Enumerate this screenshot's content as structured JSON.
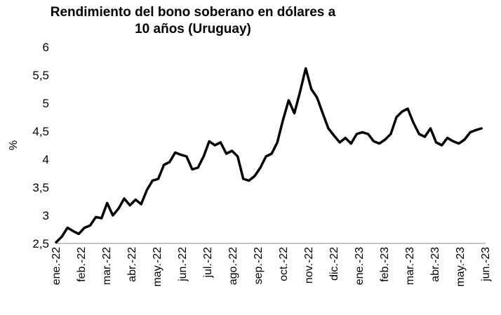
{
  "chart_data": {
    "type": "line",
    "title": "Rendimiento del bono soberano en dólares a 10 años (Uruguay)",
    "xlabel": "",
    "ylabel": "%",
    "ylim": [
      2.5,
      6
    ],
    "yticks": [
      "2,5",
      "3",
      "3,5",
      "4",
      "4,5",
      "5",
      "5,5",
      "6"
    ],
    "ytick_values": [
      2.5,
      3,
      3.5,
      4,
      4.5,
      5,
      5.5,
      6
    ],
    "xticks": [
      "ene.-22",
      "feb.-22",
      "mar.-22",
      "abr.-22",
      "may.-22",
      "jun.-22",
      "jul.-22",
      "ago.-22",
      "sep.-22",
      "oct.-22",
      "nov.-22",
      "dic.-22",
      "ene.-23",
      "feb.-23",
      "mar.-23",
      "abr.-23",
      "may.-23",
      "jun.-23"
    ],
    "grid": false,
    "legend": "none",
    "series": [
      {
        "color": "#000000",
        "x": [
          "2022-01-01",
          "2022-01-08",
          "2022-01-15",
          "2022-01-22",
          "2022-01-29",
          "2022-02-05",
          "2022-02-12",
          "2022-02-19",
          "2022-02-26",
          "2022-03-05",
          "2022-03-12",
          "2022-03-19",
          "2022-03-26",
          "2022-04-02",
          "2022-04-09",
          "2022-04-16",
          "2022-04-23",
          "2022-04-30",
          "2022-05-07",
          "2022-05-14",
          "2022-05-21",
          "2022-05-28",
          "2022-06-04",
          "2022-06-11",
          "2022-06-18",
          "2022-06-25",
          "2022-07-02",
          "2022-07-09",
          "2022-07-16",
          "2022-07-23",
          "2022-07-30",
          "2022-08-06",
          "2022-08-13",
          "2022-08-20",
          "2022-08-27",
          "2022-09-03",
          "2022-09-10",
          "2022-09-17",
          "2022-09-24",
          "2022-10-01",
          "2022-10-08",
          "2022-10-15",
          "2022-10-22",
          "2022-10-29",
          "2022-11-05",
          "2022-11-12",
          "2022-11-19",
          "2022-11-26",
          "2022-12-03",
          "2022-12-10",
          "2022-12-17",
          "2022-12-24",
          "2022-12-31",
          "2023-01-07",
          "2023-01-14",
          "2023-01-21",
          "2023-01-28",
          "2023-02-04",
          "2023-02-11",
          "2023-02-18",
          "2023-02-25",
          "2023-03-04",
          "2023-03-11",
          "2023-03-18",
          "2023-03-25",
          "2023-04-01",
          "2023-04-08",
          "2023-04-15",
          "2023-04-22",
          "2023-04-29",
          "2023-05-06",
          "2023-05-13",
          "2023-05-20",
          "2023-05-27",
          "2023-06-03",
          "2023-06-10"
        ],
        "values": [
          2.52,
          2.62,
          2.78,
          2.72,
          2.67,
          2.78,
          2.82,
          2.97,
          2.95,
          3.22,
          3.0,
          3.12,
          3.3,
          3.18,
          3.28,
          3.2,
          3.45,
          3.62,
          3.65,
          3.9,
          3.95,
          4.12,
          4.08,
          4.05,
          3.82,
          3.85,
          4.05,
          4.32,
          4.25,
          4.3,
          4.1,
          4.15,
          4.05,
          3.65,
          3.62,
          3.7,
          3.85,
          4.05,
          4.1,
          4.3,
          4.7,
          5.05,
          4.82,
          5.2,
          5.62,
          5.25,
          5.1,
          4.82,
          4.55,
          4.42,
          4.3,
          4.38,
          4.28,
          4.45,
          4.48,
          4.45,
          4.32,
          4.28,
          4.35,
          4.45,
          4.75,
          4.85,
          4.9,
          4.65,
          4.45,
          4.4,
          4.55,
          4.3,
          4.25,
          4.38,
          4.32,
          4.28,
          4.35,
          4.48,
          4.52,
          4.55
        ]
      }
    ]
  }
}
